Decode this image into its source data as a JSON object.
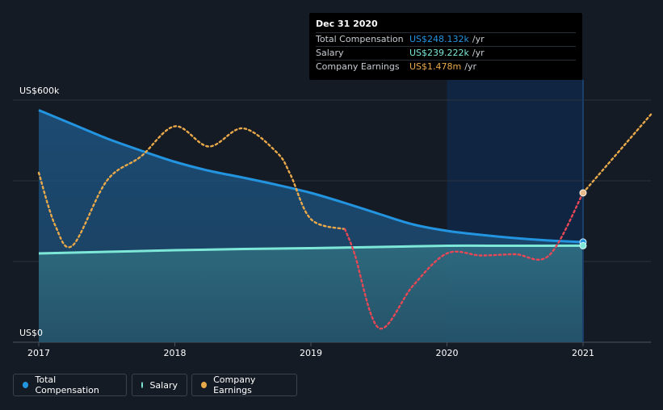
{
  "chart_data": {
    "type": "line",
    "title": "",
    "xlabel": "",
    "ylabel": "",
    "ylim": [
      0,
      600
    ],
    "xlim": [
      2017,
      2021.5
    ],
    "x_ticks": [
      "2017",
      "2018",
      "2019",
      "2020",
      "2021"
    ],
    "y_labels": {
      "top": "US$600k",
      "bottom": "US$0"
    },
    "gridlines": [
      0,
      200,
      400,
      600
    ],
    "highlight_range": [
      2020,
      2021
    ],
    "series": [
      {
        "name": "Total Compensation",
        "color": "#2394df",
        "x": [
          2017,
          2017.25,
          2017.5,
          2017.75,
          2018,
          2018.25,
          2018.5,
          2018.75,
          2019,
          2019.25,
          2019.5,
          2019.75,
          2020,
          2020.25,
          2020.5,
          2020.75,
          2021
        ],
        "values": [
          575,
          540,
          505,
          475,
          447,
          425,
          408,
          390,
          370,
          345,
          318,
          292,
          276,
          266,
          258,
          252,
          248.132
        ]
      },
      {
        "name": "Salary",
        "color": "#7ee8d8",
        "x": [
          2017,
          2017.5,
          2018,
          2018.5,
          2019,
          2019.5,
          2020,
          2020.5,
          2021
        ],
        "values": [
          220,
          224,
          228,
          231,
          233,
          236,
          239,
          239,
          239.222
        ]
      },
      {
        "name": "Company Earnings",
        "color": "#e9a94a",
        "negative_color": "#e84855",
        "x": [
          2017,
          2017.12,
          2017.25,
          2017.5,
          2017.75,
          2018,
          2018.25,
          2018.5,
          2018.75,
          2018.85,
          2019,
          2019.25,
          2019.32,
          2019.5,
          2019.75,
          2020,
          2020.25,
          2020.5,
          2020.75,
          2021,
          2021.5
        ],
        "values": [
          420,
          290,
          240,
          400,
          460,
          535,
          485,
          530,
          470,
          415,
          305,
          280,
          220,
          35,
          140,
          220,
          215,
          218,
          215,
          370,
          565
        ]
      }
    ],
    "tooltip": {
      "date": "Dec 31 2020",
      "rows": [
        {
          "label": "Total Compensation",
          "value": "US$248.132k",
          "unit": "/yr",
          "color": "#2394df"
        },
        {
          "label": "Salary",
          "value": "US$239.222k",
          "unit": "/yr",
          "color": "#7ee8d8"
        },
        {
          "label": "Company Earnings",
          "value": "US$1.478m",
          "unit": "/yr",
          "color": "#e9a94a"
        }
      ]
    },
    "legend": [
      {
        "label": "Total Compensation",
        "color": "#2394df"
      },
      {
        "label": "Salary",
        "color": "#7ee8d8"
      },
      {
        "label": "Company Earnings",
        "color": "#e9a94a"
      }
    ]
  }
}
